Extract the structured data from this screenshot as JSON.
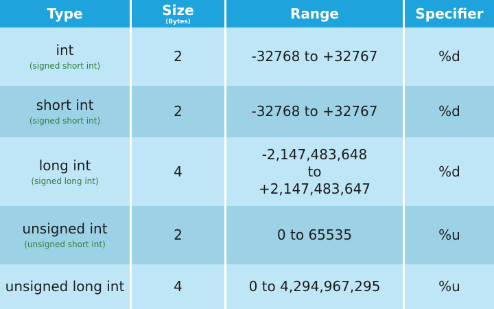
{
  "header": {
    "type": "Type",
    "size": "Size",
    "size_unit": "(Bytes)",
    "range": "Range",
    "specifier": "Specifier"
  },
  "rows": [
    {
      "type": "int",
      "subtype": "(signed short int)",
      "size": 2,
      "range": [
        "-32768 to +32767"
      ],
      "specifier": "%d"
    },
    {
      "type": "short int",
      "subtype": "(signed short int)",
      "size": 2,
      "range": [
        "-32768 to +32767"
      ],
      "specifier": "%d"
    },
    {
      "type": "long int",
      "subtype": "(signed long int)",
      "size": 4,
      "range": [
        "-2,147,483,648",
        "to",
        "+2,147,483,647"
      ],
      "specifier": "%d"
    },
    {
      "type": "unsigned int",
      "subtype": "(unsigned short int)",
      "size": 2,
      "range": [
        "0 to 65535"
      ],
      "specifier": "%u"
    },
    {
      "type": "unsigned long int",
      "size": 4,
      "range": [
        "0 to 4,294,967,295"
      ],
      "specifier": "%u"
    }
  ]
}
